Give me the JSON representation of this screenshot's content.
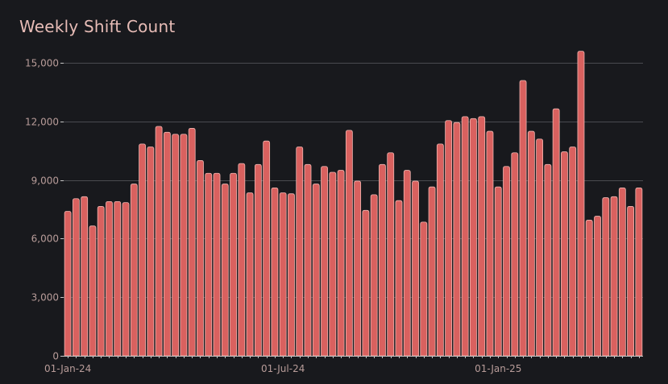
{
  "chart_data": {
    "type": "bar",
    "title": "Weekly Shift Count",
    "xlabel": "",
    "ylabel": "",
    "ylim": [
      0,
      15750
    ],
    "yticks": [
      0,
      3000,
      6000,
      9000,
      12000,
      15000
    ],
    "ytick_labels": [
      "0",
      "3,000",
      "6,000",
      "9,000",
      "12,000",
      "15,000"
    ],
    "xtick_labels": [
      {
        "label": "01-Jan-24",
        "index": 0
      },
      {
        "label": "01-Jul-24",
        "index": 26
      },
      {
        "label": "01-Jan-25",
        "index": 52
      }
    ],
    "grid": true,
    "colors": {
      "bar": "#d9615f",
      "bar_edge": "#f0b5b0",
      "grid": "#4a4b50",
      "axis": "#c6c6c6",
      "tick_label": "#b89c99",
      "background": "#18191d"
    },
    "values": [
      7400,
      8050,
      8150,
      6650,
      7650,
      7900,
      7900,
      7850,
      8800,
      10850,
      10700,
      11750,
      11450,
      11350,
      11350,
      11650,
      10000,
      9350,
      9350,
      8800,
      9350,
      9850,
      8350,
      9800,
      11000,
      8600,
      8350,
      8300,
      10700,
      9800,
      8800,
      9700,
      9400,
      9500,
      11550,
      8950,
      7450,
      8250,
      9800,
      10400,
      7950,
      9500,
      8950,
      6850,
      8650,
      10850,
      12050,
      11950,
      12250,
      12150,
      12250,
      11500,
      8650,
      9700,
      10400,
      14100,
      11500,
      11100,
      9800,
      12650,
      10450,
      10700,
      15600,
      6950,
      7150,
      8100,
      8150,
      8600,
      7650,
      8600
    ]
  }
}
